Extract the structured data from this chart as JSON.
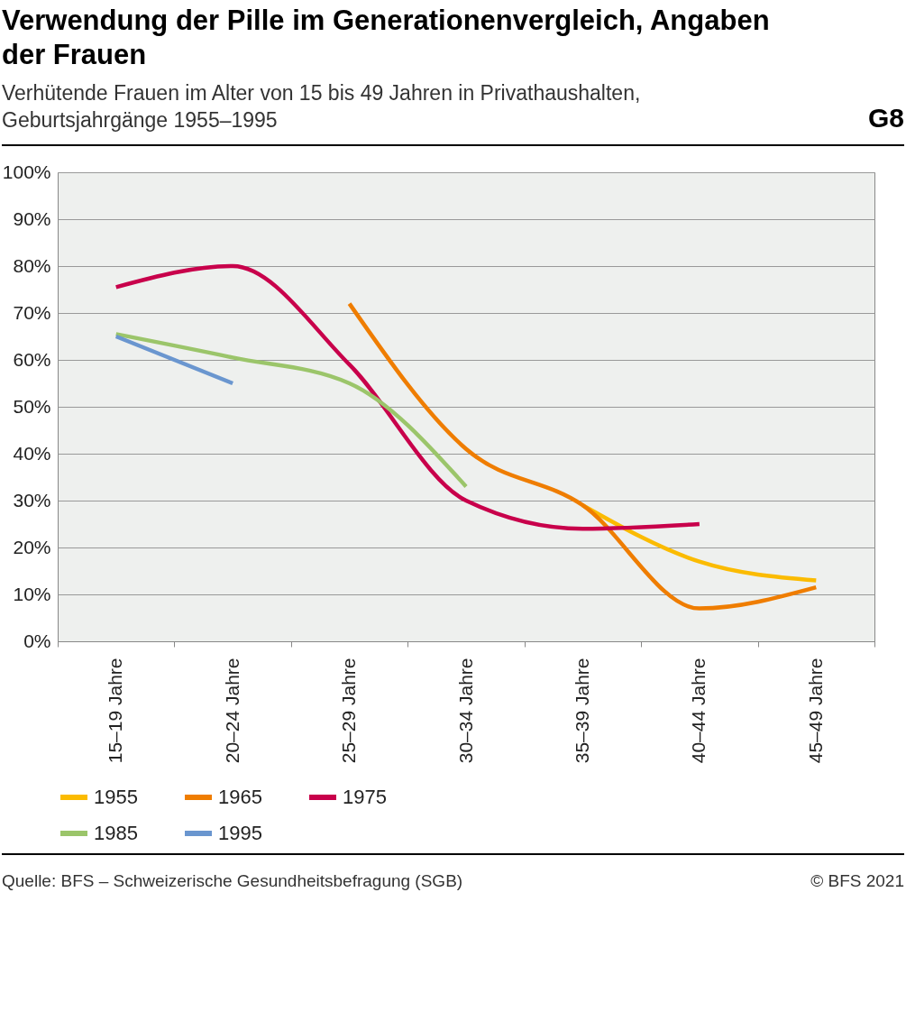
{
  "chart_data": {
    "type": "line",
    "title": "Verwendung der Pille im Generationenvergleich, Angaben der Frauen",
    "subtitle": "Verhütende Frauen im Alter von 15 bis 49 Jahren in Privathaushalten, Geburtsjahrgänge 1955–1995",
    "categories": [
      "15–19 Jahre",
      "20–24 Jahre",
      "25–29 Jahre",
      "30–34 Jahre",
      "35–39 Jahre",
      "40–44 Jahre",
      "45–49 Jahre"
    ],
    "series": [
      {
        "name": "1955",
        "color": "#fbbb00",
        "values": [
          null,
          null,
          null,
          null,
          29,
          17,
          13
        ]
      },
      {
        "name": "1965",
        "color": "#ef7d00",
        "values": [
          null,
          null,
          72,
          41,
          29,
          7,
          11.5
        ]
      },
      {
        "name": "1975",
        "color": "#c8004b",
        "values": [
          75.5,
          80,
          59,
          30,
          24,
          25,
          null
        ]
      },
      {
        "name": "1985",
        "color": "#9bc56a",
        "values": [
          65.5,
          60.5,
          55,
          33,
          null,
          null,
          null
        ]
      },
      {
        "name": "1995",
        "color": "#6a96cf",
        "values": [
          65,
          55,
          null,
          null,
          null,
          null,
          null
        ]
      }
    ],
    "ylim": [
      0,
      100
    ],
    "yticks": [
      {
        "value": 0,
        "label": "0%"
      },
      {
        "value": 10,
        "label": "10%"
      },
      {
        "value": 20,
        "label": "20%"
      },
      {
        "value": 30,
        "label": "30%"
      },
      {
        "value": 40,
        "label": "40%"
      },
      {
        "value": 50,
        "label": "50%"
      },
      {
        "value": 60,
        "label": "60%"
      },
      {
        "value": 70,
        "label": "70%"
      },
      {
        "value": 80,
        "label": "80%"
      },
      {
        "value": 90,
        "label": "90%"
      },
      {
        "value": 100,
        "label": "100%"
      }
    ],
    "grid": "y",
    "legend": "bottom",
    "marker": "none",
    "annotations": [
      "G8",
      "Quelle: BFS – Schweizerische Gesundheitsbefragung (SGB)",
      "© BFS 2021"
    ]
  }
}
